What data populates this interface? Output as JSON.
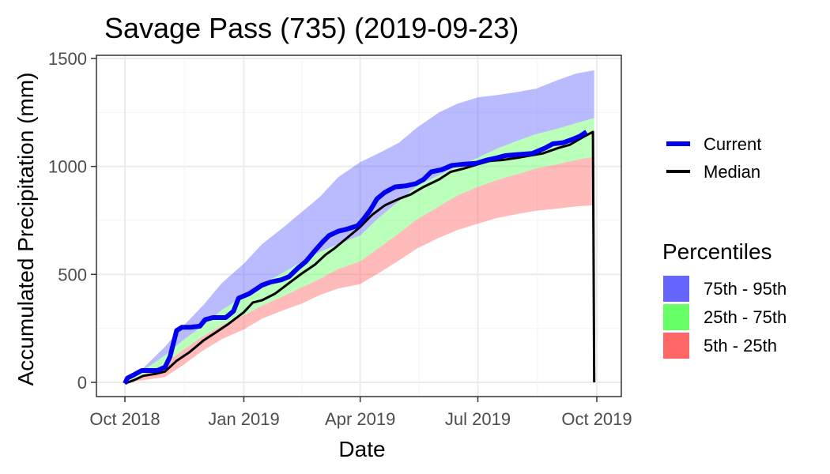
{
  "chart_data": {
    "type": "area",
    "title": "Savage Pass (735) (2019-09-23)",
    "xlabel": "Date",
    "ylabel": "Accumulated Precipitation (mm)",
    "xlim": [
      "2018-10-01",
      "2019-10-01"
    ],
    "ylim": [
      0,
      1500
    ],
    "x_ticks": [
      {
        "date": "2018-10-01",
        "label": "Oct 2018"
      },
      {
        "date": "2019-01-01",
        "label": "Jan 2019"
      },
      {
        "date": "2019-04-01",
        "label": "Apr 2019"
      },
      {
        "date": "2019-07-01",
        "label": "Jul 2019"
      },
      {
        "date": "2019-10-01",
        "label": "Oct 2019"
      }
    ],
    "y_ticks": [
      0,
      500,
      1000,
      1500
    ],
    "grid": true,
    "legend_position": "right",
    "band_dates": [
      "2018-10-01",
      "2018-10-15",
      "2018-11-01",
      "2018-11-15",
      "2018-12-01",
      "2018-12-15",
      "2019-01-01",
      "2019-01-15",
      "2019-02-01",
      "2019-02-15",
      "2019-03-01",
      "2019-03-15",
      "2019-04-01",
      "2019-04-15",
      "2019-05-01",
      "2019-05-15",
      "2019-06-01",
      "2019-06-15",
      "2019-07-01",
      "2019-07-15",
      "2019-08-01",
      "2019-08-15",
      "2019-09-01",
      "2019-09-15",
      "2019-09-29"
    ],
    "p5": [
      0,
      10,
      25,
      80,
      150,
      200,
      245,
      295,
      335,
      365,
      405,
      435,
      455,
      505,
      565,
      620,
      670,
      705,
      735,
      760,
      780,
      795,
      805,
      815,
      820
    ],
    "p25": [
      0,
      35,
      85,
      150,
      215,
      265,
      310,
      355,
      400,
      440,
      480,
      525,
      560,
      620,
      690,
      755,
      815,
      865,
      905,
      935,
      965,
      990,
      1010,
      1030,
      1045
    ],
    "p75": [
      0,
      55,
      125,
      195,
      265,
      335,
      400,
      455,
      510,
      560,
      605,
      640,
      680,
      760,
      840,
      910,
      960,
      1000,
      1040,
      1080,
      1120,
      1150,
      1175,
      1200,
      1225
    ],
    "p95": [
      0,
      65,
      165,
      260,
      360,
      460,
      550,
      640,
      720,
      790,
      860,
      950,
      1020,
      1060,
      1110,
      1180,
      1250,
      1290,
      1320,
      1330,
      1345,
      1360,
      1400,
      1430,
      1445
    ],
    "series": [
      {
        "name": "Current",
        "color": "#0000ee",
        "points": [
          [
            "2018-10-01",
            -5
          ],
          [
            "2018-10-03",
            20
          ],
          [
            "2018-10-08",
            35
          ],
          [
            "2018-10-14",
            55
          ],
          [
            "2018-10-20",
            55
          ],
          [
            "2018-10-26",
            55
          ],
          [
            "2018-11-01",
            70
          ],
          [
            "2018-11-05",
            120
          ],
          [
            "2018-11-10",
            240
          ],
          [
            "2018-11-14",
            255
          ],
          [
            "2018-11-20",
            255
          ],
          [
            "2018-11-28",
            260
          ],
          [
            "2018-12-02",
            290
          ],
          [
            "2018-12-08",
            300
          ],
          [
            "2018-12-18",
            300
          ],
          [
            "2018-12-24",
            330
          ],
          [
            "2018-12-28",
            390
          ],
          [
            "2019-01-05",
            410
          ],
          [
            "2019-01-10",
            430
          ],
          [
            "2019-01-15",
            450
          ],
          [
            "2019-01-22",
            465
          ],
          [
            "2019-01-30",
            475
          ],
          [
            "2019-02-05",
            490
          ],
          [
            "2019-02-12",
            530
          ],
          [
            "2019-02-18",
            560
          ],
          [
            "2019-02-25",
            610
          ],
          [
            "2019-03-03",
            650
          ],
          [
            "2019-03-08",
            680
          ],
          [
            "2019-03-15",
            700
          ],
          [
            "2019-03-22",
            710
          ],
          [
            "2019-03-30",
            725
          ],
          [
            "2019-04-04",
            760
          ],
          [
            "2019-04-09",
            800
          ],
          [
            "2019-04-14",
            850
          ],
          [
            "2019-04-20",
            880
          ],
          [
            "2019-04-28",
            905
          ],
          [
            "2019-05-06",
            910
          ],
          [
            "2019-05-14",
            920
          ],
          [
            "2019-05-20",
            940
          ],
          [
            "2019-05-26",
            975
          ],
          [
            "2019-06-03",
            985
          ],
          [
            "2019-06-11",
            1005
          ],
          [
            "2019-06-20",
            1010
          ],
          [
            "2019-06-30",
            1015
          ],
          [
            "2019-07-08",
            1030
          ],
          [
            "2019-07-16",
            1040
          ],
          [
            "2019-07-22",
            1050
          ],
          [
            "2019-08-01",
            1055
          ],
          [
            "2019-08-12",
            1060
          ],
          [
            "2019-08-22",
            1085
          ],
          [
            "2019-08-28",
            1105
          ],
          [
            "2019-09-05",
            1110
          ],
          [
            "2019-09-12",
            1125
          ],
          [
            "2019-09-18",
            1140
          ],
          [
            "2019-09-23",
            1160
          ]
        ]
      },
      {
        "name": "Median",
        "color": "#000000",
        "points": [
          [
            "2018-10-01",
            -5
          ],
          [
            "2018-10-08",
            10
          ],
          [
            "2018-10-15",
            30
          ],
          [
            "2018-10-25",
            40
          ],
          [
            "2018-11-01",
            50
          ],
          [
            "2018-11-10",
            100
          ],
          [
            "2018-11-20",
            140
          ],
          [
            "2018-12-01",
            195
          ],
          [
            "2018-12-10",
            230
          ],
          [
            "2018-12-20",
            270
          ],
          [
            "2019-01-01",
            325
          ],
          [
            "2019-01-08",
            370
          ],
          [
            "2019-01-15",
            380
          ],
          [
            "2019-01-25",
            410
          ],
          [
            "2019-02-05",
            460
          ],
          [
            "2019-02-15",
            505
          ],
          [
            "2019-02-25",
            545
          ],
          [
            "2019-03-05",
            590
          ],
          [
            "2019-03-12",
            620
          ],
          [
            "2019-03-20",
            660
          ],
          [
            "2019-04-01",
            720
          ],
          [
            "2019-04-10",
            775
          ],
          [
            "2019-04-20",
            820
          ],
          [
            "2019-05-01",
            850
          ],
          [
            "2019-05-10",
            870
          ],
          [
            "2019-05-20",
            905
          ],
          [
            "2019-06-01",
            940
          ],
          [
            "2019-06-10",
            975
          ],
          [
            "2019-06-20",
            990
          ],
          [
            "2019-07-01",
            1010
          ],
          [
            "2019-07-10",
            1025
          ],
          [
            "2019-07-20",
            1030
          ],
          [
            "2019-08-01",
            1040
          ],
          [
            "2019-08-10",
            1050
          ],
          [
            "2019-08-20",
            1060
          ],
          [
            "2019-09-01",
            1085
          ],
          [
            "2019-09-10",
            1100
          ],
          [
            "2019-09-20",
            1135
          ],
          [
            "2019-09-28",
            1160
          ],
          [
            "2019-09-29",
            0
          ]
        ]
      }
    ],
    "bands": [
      {
        "name": "75th - 95th",
        "color": "#6666ff",
        "opacity": 0.45,
        "lower": "p75",
        "upper": "p95"
      },
      {
        "name": "25th - 75th",
        "color": "#66ff66",
        "opacity": 0.45,
        "lower": "p25",
        "upper": "p75"
      },
      {
        "name": "5th - 25th",
        "color": "#ff6666",
        "opacity": 0.45,
        "lower": "p5",
        "upper": "p25"
      }
    ],
    "legend": {
      "lines": [
        {
          "label": "Current",
          "color": "#0000ee"
        },
        {
          "label": "Median",
          "color": "#000000"
        }
      ],
      "fill_title": "Percentiles",
      "fills": [
        {
          "label": "75th - 95th",
          "color": "#6666ff"
        },
        {
          "label": "25th - 75th",
          "color": "#66ff66"
        },
        {
          "label": "5th - 25th",
          "color": "#ff6666"
        }
      ]
    }
  }
}
